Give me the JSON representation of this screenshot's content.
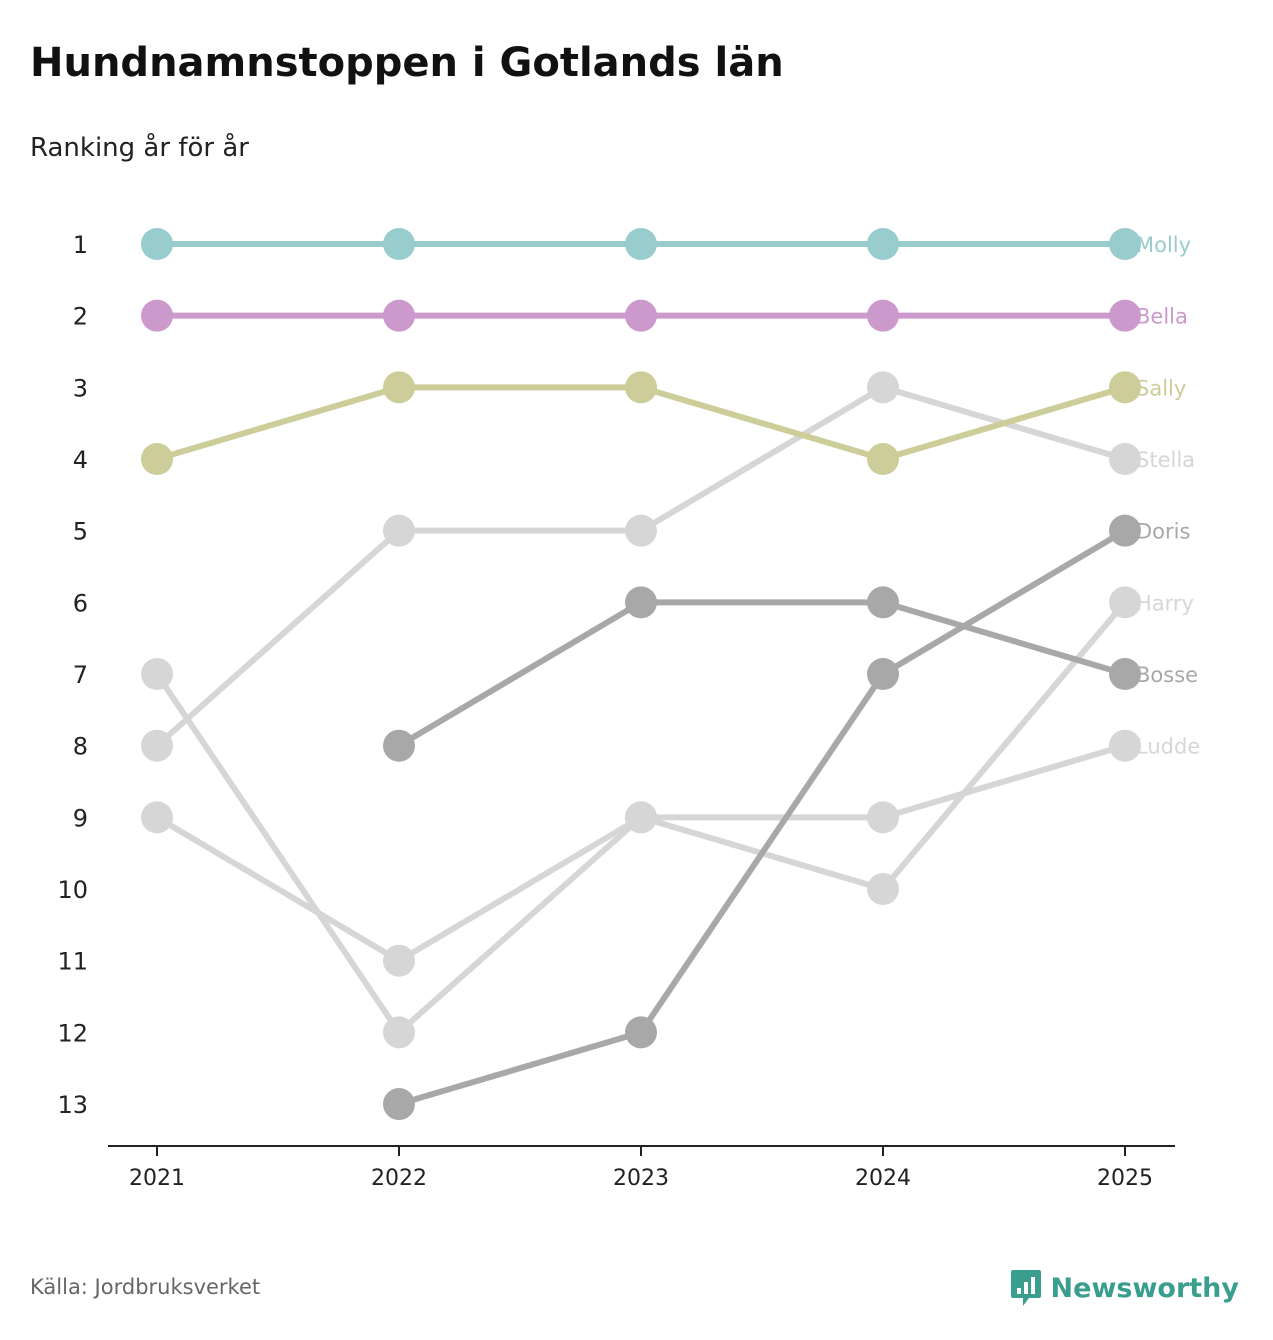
{
  "title": "Hundnamnstoppen i Gotlands län",
  "subtitle": "Ranking år för år",
  "source": "Källa: Jordbruksverket",
  "brand": "Newsworthy",
  "brand_color": "#3a9e8f",
  "chart_data": {
    "type": "line",
    "title": "Hundnamnstoppen i Gotlands län",
    "subtitle": "Ranking år för år",
    "xlabel": "",
    "ylabel": "",
    "x": [
      "2021",
      "2022",
      "2023",
      "2024",
      "2025"
    ],
    "y_ticks": [
      1,
      2,
      3,
      4,
      5,
      6,
      7,
      8,
      9,
      10,
      11,
      12,
      13
    ],
    "ylim": [
      1,
      13
    ],
    "y_inverted": true,
    "series": [
      {
        "name": "Ludde",
        "color": "#d6d6d6",
        "values": [
          9,
          11,
          9,
          9,
          8
        ]
      },
      {
        "name": "Harry",
        "color": "#d6d6d6",
        "values": [
          7,
          12,
          9,
          10,
          6
        ]
      },
      {
        "name": "Stella",
        "color": "#d6d6d6",
        "values": [
          8,
          5,
          5,
          3,
          4
        ]
      },
      {
        "name": "Bosse",
        "color": "#a8a8a8",
        "values": [
          null,
          8,
          6,
          6,
          7
        ]
      },
      {
        "name": "Doris",
        "color": "#a8a8a8",
        "values": [
          null,
          13,
          12,
          7,
          5
        ]
      },
      {
        "name": "Sally",
        "color": "#cccd99",
        "values": [
          4,
          3,
          3,
          4,
          3
        ]
      },
      {
        "name": "Bella",
        "color": "#cc99cc",
        "values": [
          2,
          2,
          2,
          2,
          2
        ]
      },
      {
        "name": "Molly",
        "color": "#99cccc",
        "values": [
          1,
          1,
          1,
          1,
          1
        ]
      }
    ]
  }
}
